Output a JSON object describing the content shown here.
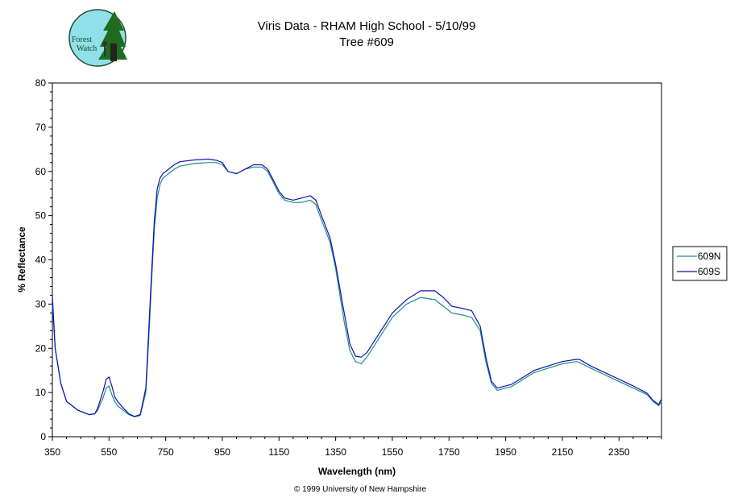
{
  "logo": {
    "text_line1": "Forest",
    "text_line2": "Watch"
  },
  "copyright": "© 1999 University of New Hampshire",
  "colors": {
    "series_609N": "#1e8c8c",
    "series_609S": "#1010b4",
    "axis": "#000000"
  },
  "chart_data": {
    "type": "line",
    "title": "Viris Data - RHAM High School - 5/10/99",
    "subtitle": "Tree #609",
    "xlabel": "Wavelength (nm)",
    "ylabel": "% Reflectance",
    "xlim": [
      350,
      2500
    ],
    "ylim": [
      0,
      80
    ],
    "x_ticks": [
      "350",
      "550",
      "750",
      "950",
      "1150",
      "1350",
      "1550",
      "1750",
      "1950",
      "2150",
      "2350"
    ],
    "y_ticks": [
      "0",
      "10",
      "20",
      "30",
      "40",
      "50",
      "60",
      "70",
      "80"
    ],
    "grid": false,
    "legend_position": "right",
    "series": [
      {
        "name": "609N",
        "x": [
          350,
          360,
          380,
          400,
          420,
          440,
          460,
          480,
          500,
          510,
          520,
          530,
          540,
          550,
          560,
          570,
          580,
          600,
          620,
          640,
          660,
          680,
          690,
          700,
          710,
          720,
          730,
          740,
          750,
          760,
          780,
          800,
          850,
          900,
          930,
          950,
          970,
          1000,
          1030,
          1060,
          1090,
          1110,
          1130,
          1150,
          1170,
          1200,
          1230,
          1260,
          1280,
          1300,
          1330,
          1350,
          1380,
          1400,
          1420,
          1440,
          1460,
          1500,
          1550,
          1600,
          1650,
          1700,
          1730,
          1760,
          1800,
          1830,
          1860,
          1880,
          1900,
          1920,
          1950,
          1970,
          2000,
          2050,
          2100,
          2150,
          2200,
          2210,
          2250,
          2300,
          2350,
          2400,
          2450,
          2470,
          2490,
          2500
        ],
        "y": [
          30,
          20,
          12,
          8,
          7,
          6,
          5.5,
          5,
          5.2,
          6,
          7.5,
          9,
          11,
          11.5,
          9.5,
          8,
          7,
          6,
          5,
          4.5,
          4.8,
          10,
          22,
          35,
          47,
          54,
          57,
          58.5,
          59,
          59.5,
          60.5,
          61.2,
          61.8,
          62,
          62,
          61.5,
          60,
          59.5,
          60.5,
          61,
          61,
          60,
          57.5,
          55,
          53.5,
          53,
          53,
          53.5,
          52.5,
          49,
          44,
          38,
          26,
          19.5,
          17,
          16.5,
          18,
          22,
          27,
          30,
          31.5,
          31,
          29.5,
          28,
          27.5,
          27,
          24,
          17,
          12,
          10.5,
          11,
          11.3,
          12.5,
          14.5,
          15.5,
          16.5,
          17,
          16.8,
          15.5,
          14,
          12.5,
          11,
          9.5,
          8,
          7,
          8
        ]
      },
      {
        "name": "609S",
        "x": [
          350,
          360,
          380,
          400,
          420,
          440,
          460,
          480,
          500,
          510,
          520,
          530,
          540,
          550,
          560,
          570,
          580,
          600,
          620,
          640,
          660,
          680,
          690,
          700,
          710,
          720,
          730,
          740,
          750,
          760,
          780,
          800,
          850,
          900,
          930,
          950,
          970,
          1000,
          1030,
          1060,
          1090,
          1110,
          1130,
          1150,
          1170,
          1200,
          1230,
          1260,
          1280,
          1300,
          1330,
          1350,
          1380,
          1400,
          1420,
          1440,
          1460,
          1500,
          1550,
          1600,
          1650,
          1700,
          1730,
          1760,
          1800,
          1830,
          1860,
          1880,
          1900,
          1920,
          1950,
          1970,
          2000,
          2050,
          2100,
          2150,
          2200,
          2210,
          2250,
          2300,
          2350,
          2400,
          2450,
          2470,
          2490,
          2500
        ],
        "y": [
          32,
          20,
          12,
          8,
          7,
          6,
          5.5,
          5,
          5.2,
          6.5,
          8.5,
          10.5,
          13,
          13.5,
          11.5,
          9,
          8,
          6.5,
          5.2,
          4.6,
          5,
          11,
          24,
          37,
          49,
          56,
          58.5,
          59.5,
          60,
          60.5,
          61.5,
          62.2,
          62.6,
          62.8,
          62.5,
          62,
          60,
          59.5,
          60.5,
          61.5,
          61.5,
          60.5,
          58,
          55.5,
          54,
          53.5,
          54,
          54.5,
          53.5,
          50,
          45,
          39,
          28,
          21,
          18.2,
          18,
          19,
          23,
          28,
          31,
          33,
          33,
          31.5,
          29.5,
          29,
          28.5,
          25,
          18,
          12.5,
          11,
          11.5,
          11.8,
          13,
          15,
          16,
          17,
          17.5,
          17.5,
          16,
          14.5,
          13,
          11.5,
          9.8,
          8.2,
          7.3,
          8.5
        ]
      }
    ]
  }
}
